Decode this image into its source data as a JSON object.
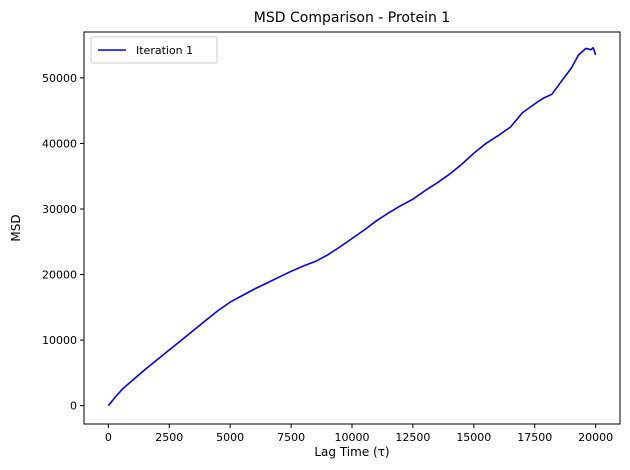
{
  "chart_data": {
    "type": "line",
    "title": "MSD Comparison - Protein 1",
    "xlabel": "Lag Time (τ)",
    "ylabel": "MSD",
    "xlim": [
      -1000,
      21000
    ],
    "ylim": [
      -2800,
      57000
    ],
    "xticks": [
      0,
      2500,
      5000,
      7500,
      10000,
      12500,
      15000,
      17500,
      20000
    ],
    "yticks": [
      0,
      10000,
      20000,
      30000,
      40000,
      50000
    ],
    "grid": false,
    "legend_position": "top-left",
    "series": [
      {
        "name": "Iteration 1",
        "color": "#0000ff",
        "x": [
          0,
          300,
          600,
          1000,
          1500,
          2000,
          2500,
          3000,
          3500,
          4000,
          4500,
          5000,
          5500,
          6000,
          6500,
          7000,
          7500,
          8000,
          8500,
          9000,
          9500,
          10000,
          10500,
          11000,
          11500,
          12000,
          12500,
          13000,
          13500,
          14000,
          14500,
          15000,
          15500,
          16000,
          16500,
          17000,
          17300,
          17600,
          17900,
          18200,
          18600,
          19000,
          19300,
          19600,
          19800,
          19900,
          20000
        ],
        "y": [
          0,
          1400,
          2600,
          3900,
          5500,
          7000,
          8500,
          10000,
          11500,
          13000,
          14500,
          15800,
          16800,
          17800,
          18700,
          19600,
          20500,
          21300,
          22000,
          23000,
          24200,
          25500,
          26800,
          28200,
          29400,
          30500,
          31500,
          32800,
          34000,
          35300,
          36800,
          38500,
          40000,
          41200,
          42500,
          44700,
          45500,
          46300,
          47000,
          47500,
          49500,
          51500,
          53500,
          54500,
          54300,
          54600,
          53500
        ]
      }
    ]
  }
}
